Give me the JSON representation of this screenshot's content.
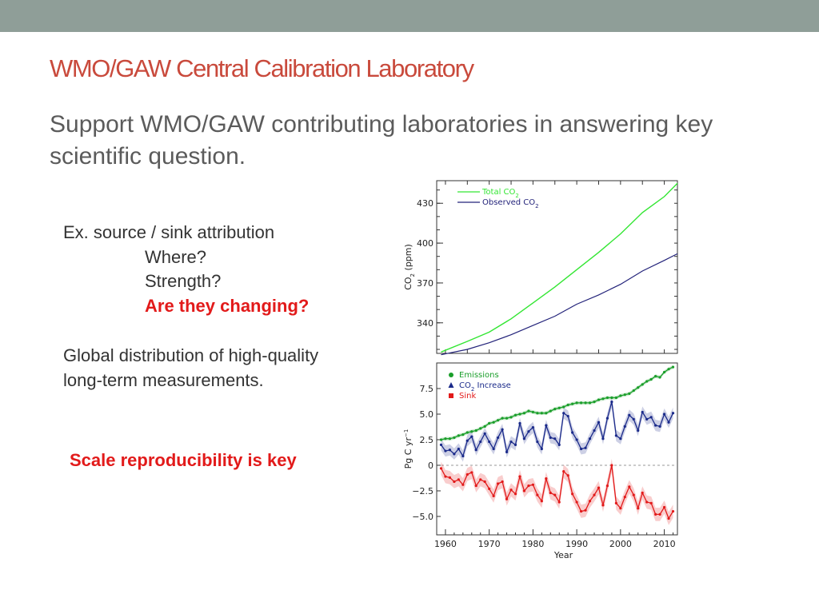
{
  "slide": {
    "title": "WMO/GAW Central Calibration Laboratory",
    "subtitle": "Support WMO/GAW contributing laboratories in answering key scientific question.",
    "attribution": {
      "heading": "Ex. source / sink attribution",
      "items": [
        "Where?",
        "Strength?"
      ],
      "highlight": "Are they changing?"
    },
    "distribution": [
      "Global distribution of high-quality",
      "long-term measurements."
    ],
    "key_message": "Scale reproducibility is key"
  },
  "colors": {
    "topbar": "#8f9e98",
    "title": "#c94a3c",
    "highlight": "#e21a1a",
    "total_co2": "#33e633",
    "observed_co2": "#23237a",
    "emissions": "#1a9e2a",
    "co2_increase": "#1a2a8a",
    "sink": "#e21a1a"
  },
  "chart_data": [
    {
      "type": "line",
      "xlabel": "",
      "ylabel": "CO2 (ppm)",
      "ylim": [
        317,
        447
      ],
      "yticks": [
        340,
        370,
        400,
        430
      ],
      "xlim": [
        1958,
        2013
      ],
      "legend_position": "top-left",
      "series": [
        {
          "name": "Total CO2",
          "x": [
            1959,
            1965,
            1970,
            1975,
            1980,
            1985,
            1990,
            1995,
            2000,
            2005,
            2010,
            2013
          ],
          "values": [
            318,
            326,
            333,
            343,
            355,
            367,
            380,
            393,
            407,
            423,
            435,
            445
          ]
        },
        {
          "name": "Observed CO2",
          "x": [
            1959,
            1965,
            1970,
            1975,
            1980,
            1985,
            1990,
            1995,
            2000,
            2005,
            2010,
            2013
          ],
          "values": [
            316,
            320,
            325,
            331,
            338,
            345,
            354,
            361,
            369,
            379,
            387,
            392
          ]
        }
      ]
    },
    {
      "type": "line",
      "xlabel": "Year",
      "ylabel": "Pg C yr-1",
      "ylim": [
        -6.8,
        10.0
      ],
      "yticks": [
        -5.0,
        -2.5,
        0,
        2.5,
        5.0,
        7.5
      ],
      "ytick_labels": [
        "−5.0",
        "−2.5",
        "0",
        "2.5",
        "5.0",
        "7.5"
      ],
      "xlim": [
        1958,
        2013
      ],
      "xticks": [
        1960,
        1970,
        1980,
        1990,
        2000,
        2010
      ],
      "legend_position": "top-left",
      "series": [
        {
          "name": "Emissions",
          "x": [
            1959,
            1960,
            1961,
            1962,
            1963,
            1964,
            1965,
            1966,
            1967,
            1968,
            1969,
            1970,
            1971,
            1972,
            1973,
            1974,
            1975,
            1976,
            1977,
            1978,
            1979,
            1980,
            1981,
            1982,
            1983,
            1984,
            1985,
            1986,
            1987,
            1988,
            1989,
            1990,
            1991,
            1992,
            1993,
            1994,
            1995,
            1996,
            1997,
            1998,
            1999,
            2000,
            2001,
            2002,
            2003,
            2004,
            2005,
            2006,
            2007,
            2008,
            2009,
            2010,
            2011,
            2012
          ],
          "values": [
            2.5,
            2.6,
            2.6,
            2.7,
            2.9,
            3.0,
            3.2,
            3.3,
            3.4,
            3.6,
            3.8,
            4.1,
            4.2,
            4.4,
            4.6,
            4.6,
            4.7,
            4.9,
            5.0,
            5.1,
            5.3,
            5.2,
            5.1,
            5.1,
            5.1,
            5.3,
            5.5,
            5.6,
            5.7,
            5.9,
            6.0,
            6.1,
            6.1,
            6.1,
            6.1,
            6.2,
            6.4,
            6.5,
            6.6,
            6.6,
            6.6,
            6.8,
            6.9,
            7.0,
            7.3,
            7.6,
            7.9,
            8.2,
            8.4,
            8.7,
            8.6,
            9.1,
            9.4,
            9.6
          ]
        },
        {
          "name": "CO2 Increase",
          "x": [
            1959,
            1960,
            1961,
            1962,
            1963,
            1964,
            1965,
            1966,
            1967,
            1968,
            1969,
            1970,
            1971,
            1972,
            1973,
            1974,
            1975,
            1976,
            1977,
            1978,
            1979,
            1980,
            1981,
            1982,
            1983,
            1984,
            1985,
            1986,
            1987,
            1988,
            1989,
            1990,
            1991,
            1992,
            1993,
            1994,
            1995,
            1996,
            1997,
            1998,
            1999,
            2000,
            2001,
            2002,
            2003,
            2004,
            2005,
            2006,
            2007,
            2008,
            2009,
            2010,
            2011,
            2012
          ],
          "values": [
            2.0,
            1.4,
            1.5,
            1.1,
            1.6,
            0.9,
            2.4,
            2.8,
            1.5,
            2.3,
            3.1,
            2.3,
            1.6,
            2.7,
            3.5,
            1.3,
            2.3,
            2.0,
            4.1,
            2.6,
            3.3,
            3.7,
            2.3,
            1.6,
            3.9,
            2.7,
            2.6,
            2.0,
            5.1,
            4.8,
            3.2,
            2.5,
            1.6,
            1.7,
            2.6,
            3.4,
            4.2,
            2.6,
            4.6,
            6.2,
            2.9,
            2.6,
            3.8,
            4.9,
            4.5,
            3.4,
            5.2,
            4.5,
            4.7,
            3.9,
            3.8,
            5.0,
            4.2,
            5.1
          ]
        },
        {
          "name": "Sink",
          "x": [
            1959,
            1960,
            1961,
            1962,
            1963,
            1964,
            1965,
            1966,
            1967,
            1968,
            1969,
            1970,
            1971,
            1972,
            1973,
            1974,
            1975,
            1976,
            1977,
            1978,
            1979,
            1980,
            1981,
            1982,
            1983,
            1984,
            1985,
            1986,
            1987,
            1988,
            1989,
            1990,
            1991,
            1992,
            1993,
            1994,
            1995,
            1996,
            1997,
            1998,
            1999,
            2000,
            2001,
            2002,
            2003,
            2004,
            2005,
            2006,
            2007,
            2008,
            2009,
            2010,
            2011,
            2012
          ],
          "values": [
            -0.3,
            -1.1,
            -1.2,
            -1.6,
            -1.4,
            -1.9,
            -0.9,
            -0.7,
            -2.0,
            -1.4,
            -1.6,
            -2.3,
            -3.0,
            -1.8,
            -1.6,
            -3.3,
            -2.4,
            -2.8,
            -1.1,
            -2.5,
            -2.0,
            -1.9,
            -2.9,
            -3.5,
            -1.3,
            -2.7,
            -2.9,
            -3.6,
            -0.6,
            -1.0,
            -2.8,
            -3.6,
            -4.5,
            -4.4,
            -3.5,
            -2.9,
            -2.2,
            -3.9,
            -2.0,
            0.0,
            -3.7,
            -4.2,
            -3.1,
            -2.1,
            -2.9,
            -4.2,
            -2.7,
            -3.6,
            -3.7,
            -4.8,
            -4.8,
            -4.1,
            -5.2,
            -4.5
          ]
        }
      ]
    }
  ]
}
